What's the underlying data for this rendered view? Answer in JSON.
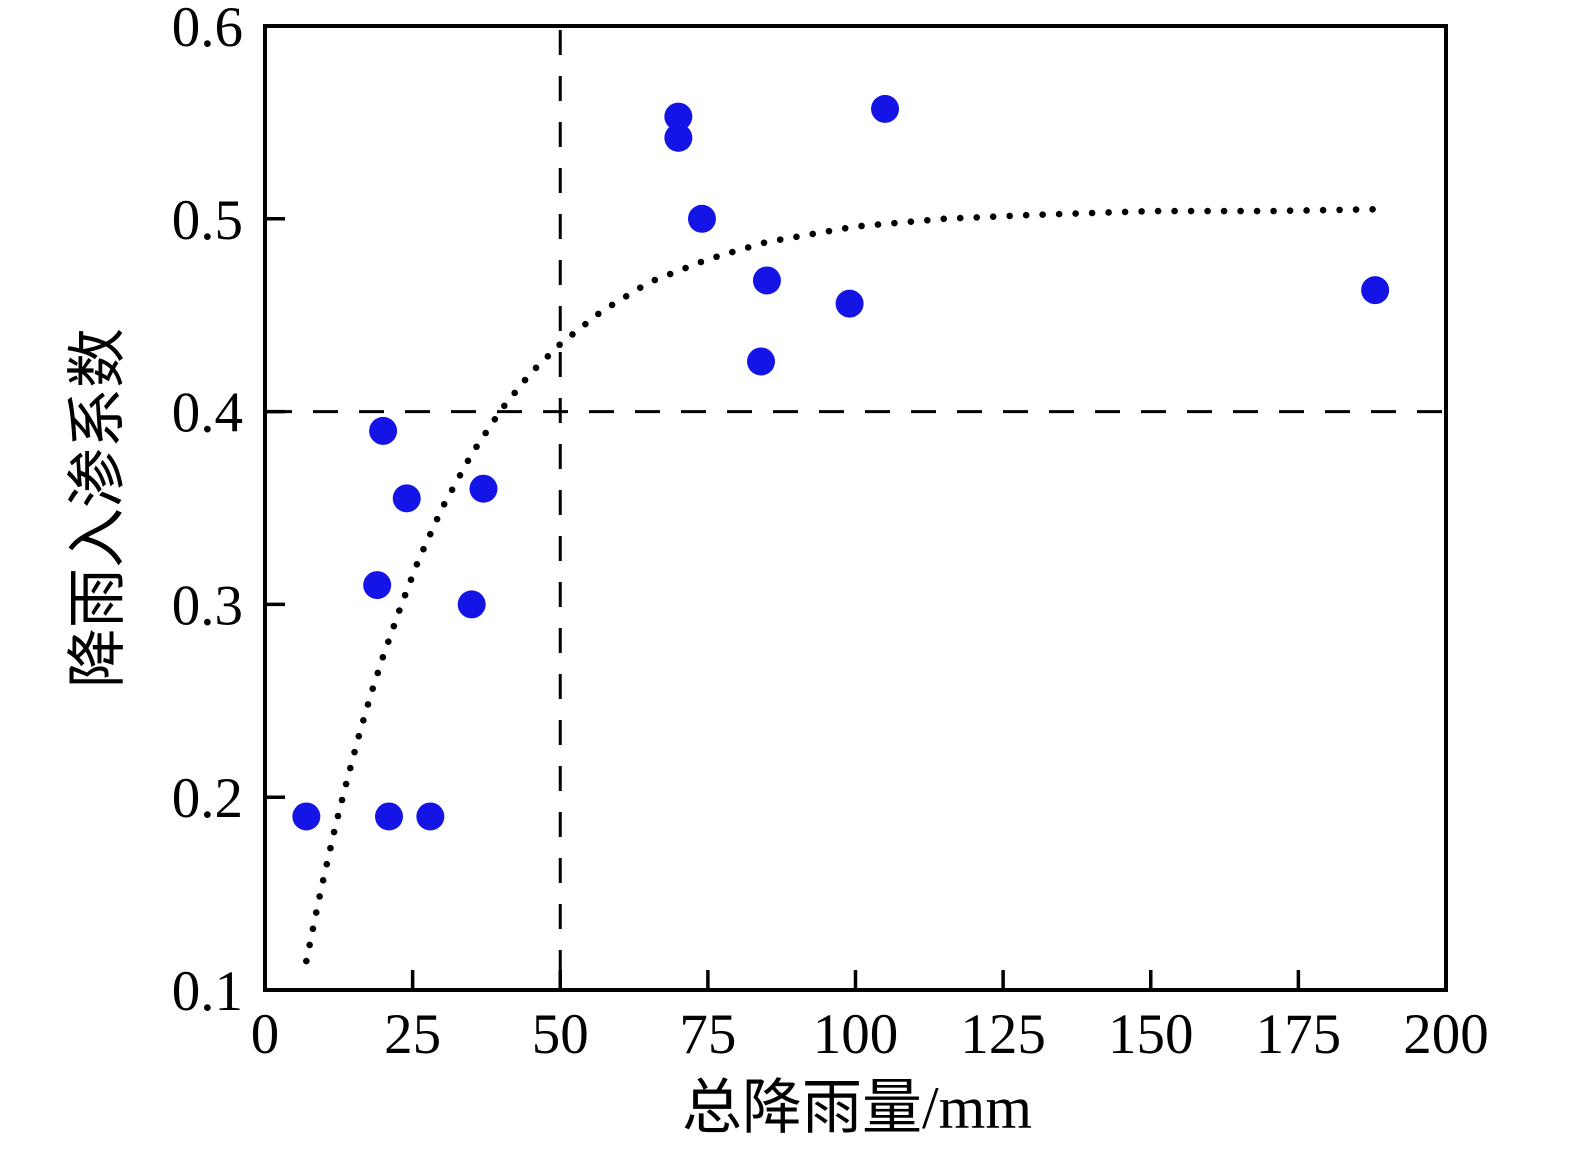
{
  "chart_data": {
    "type": "scatter",
    "title": "",
    "xlabel": "总降雨量/mm",
    "ylabel": "降雨入渗系数",
    "xlim": [
      0,
      200
    ],
    "ylim": [
      0.1,
      0.6
    ],
    "xticks": [
      0,
      25,
      50,
      75,
      100,
      125,
      150,
      175,
      200
    ],
    "xtick_labels": [
      "0",
      "25",
      "50",
      "75",
      "100",
      "125",
      "150",
      "175",
      "200"
    ],
    "yticks": [
      0.1,
      0.2,
      0.3,
      0.4,
      0.5,
      0.6
    ],
    "ytick_labels": [
      "0.1",
      "0.2",
      "0.3",
      "0.4",
      "0.5",
      "0.6"
    ],
    "grid": false,
    "legend_position": "none",
    "colors": {
      "point_fill": "#1414e6",
      "curve_dot": "#000000",
      "axis": "#000000",
      "background": "#ffffff"
    },
    "series": [
      {
        "name": "rainfall-infiltration-points",
        "type": "scatter",
        "marker": "circle",
        "points": [
          [
            7,
            0.19
          ],
          [
            19,
            0.31
          ],
          [
            20,
            0.39
          ],
          [
            21,
            0.19
          ],
          [
            24,
            0.355
          ],
          [
            28,
            0.19
          ],
          [
            35,
            0.3
          ],
          [
            37,
            0.36
          ],
          [
            70,
            0.542
          ],
          [
            70,
            0.553
          ],
          [
            74,
            0.5
          ],
          [
            84,
            0.426
          ],
          [
            85,
            0.468
          ],
          [
            99,
            0.456
          ],
          [
            105,
            0.557
          ],
          [
            188,
            0.463
          ]
        ]
      },
      {
        "name": "fitted-curve",
        "type": "dotted-line",
        "points": [
          [
            7,
            0.115
          ],
          [
            8,
            0.13
          ],
          [
            9,
            0.145
          ],
          [
            10,
            0.159
          ],
          [
            12,
            0.186
          ],
          [
            14,
            0.21
          ],
          [
            16,
            0.233
          ],
          [
            18,
            0.254
          ],
          [
            20,
            0.273
          ],
          [
            23,
            0.299
          ],
          [
            26,
            0.323
          ],
          [
            30,
            0.35
          ],
          [
            35,
            0.378
          ],
          [
            40,
            0.401
          ],
          [
            45,
            0.42
          ],
          [
            50,
            0.435
          ],
          [
            57,
            0.452
          ],
          [
            65,
            0.467
          ],
          [
            75,
            0.479
          ],
          [
            85,
            0.488
          ],
          [
            100,
            0.496
          ],
          [
            115,
            0.5
          ],
          [
            130,
            0.502
          ],
          [
            150,
            0.504
          ],
          [
            170,
            0.504
          ],
          [
            189,
            0.505
          ]
        ]
      }
    ],
    "reference_lines": [
      {
        "orientation": "vertical",
        "value": 50,
        "style": "dashed"
      },
      {
        "orientation": "horizontal",
        "value": 0.4,
        "style": "dashed"
      }
    ]
  }
}
